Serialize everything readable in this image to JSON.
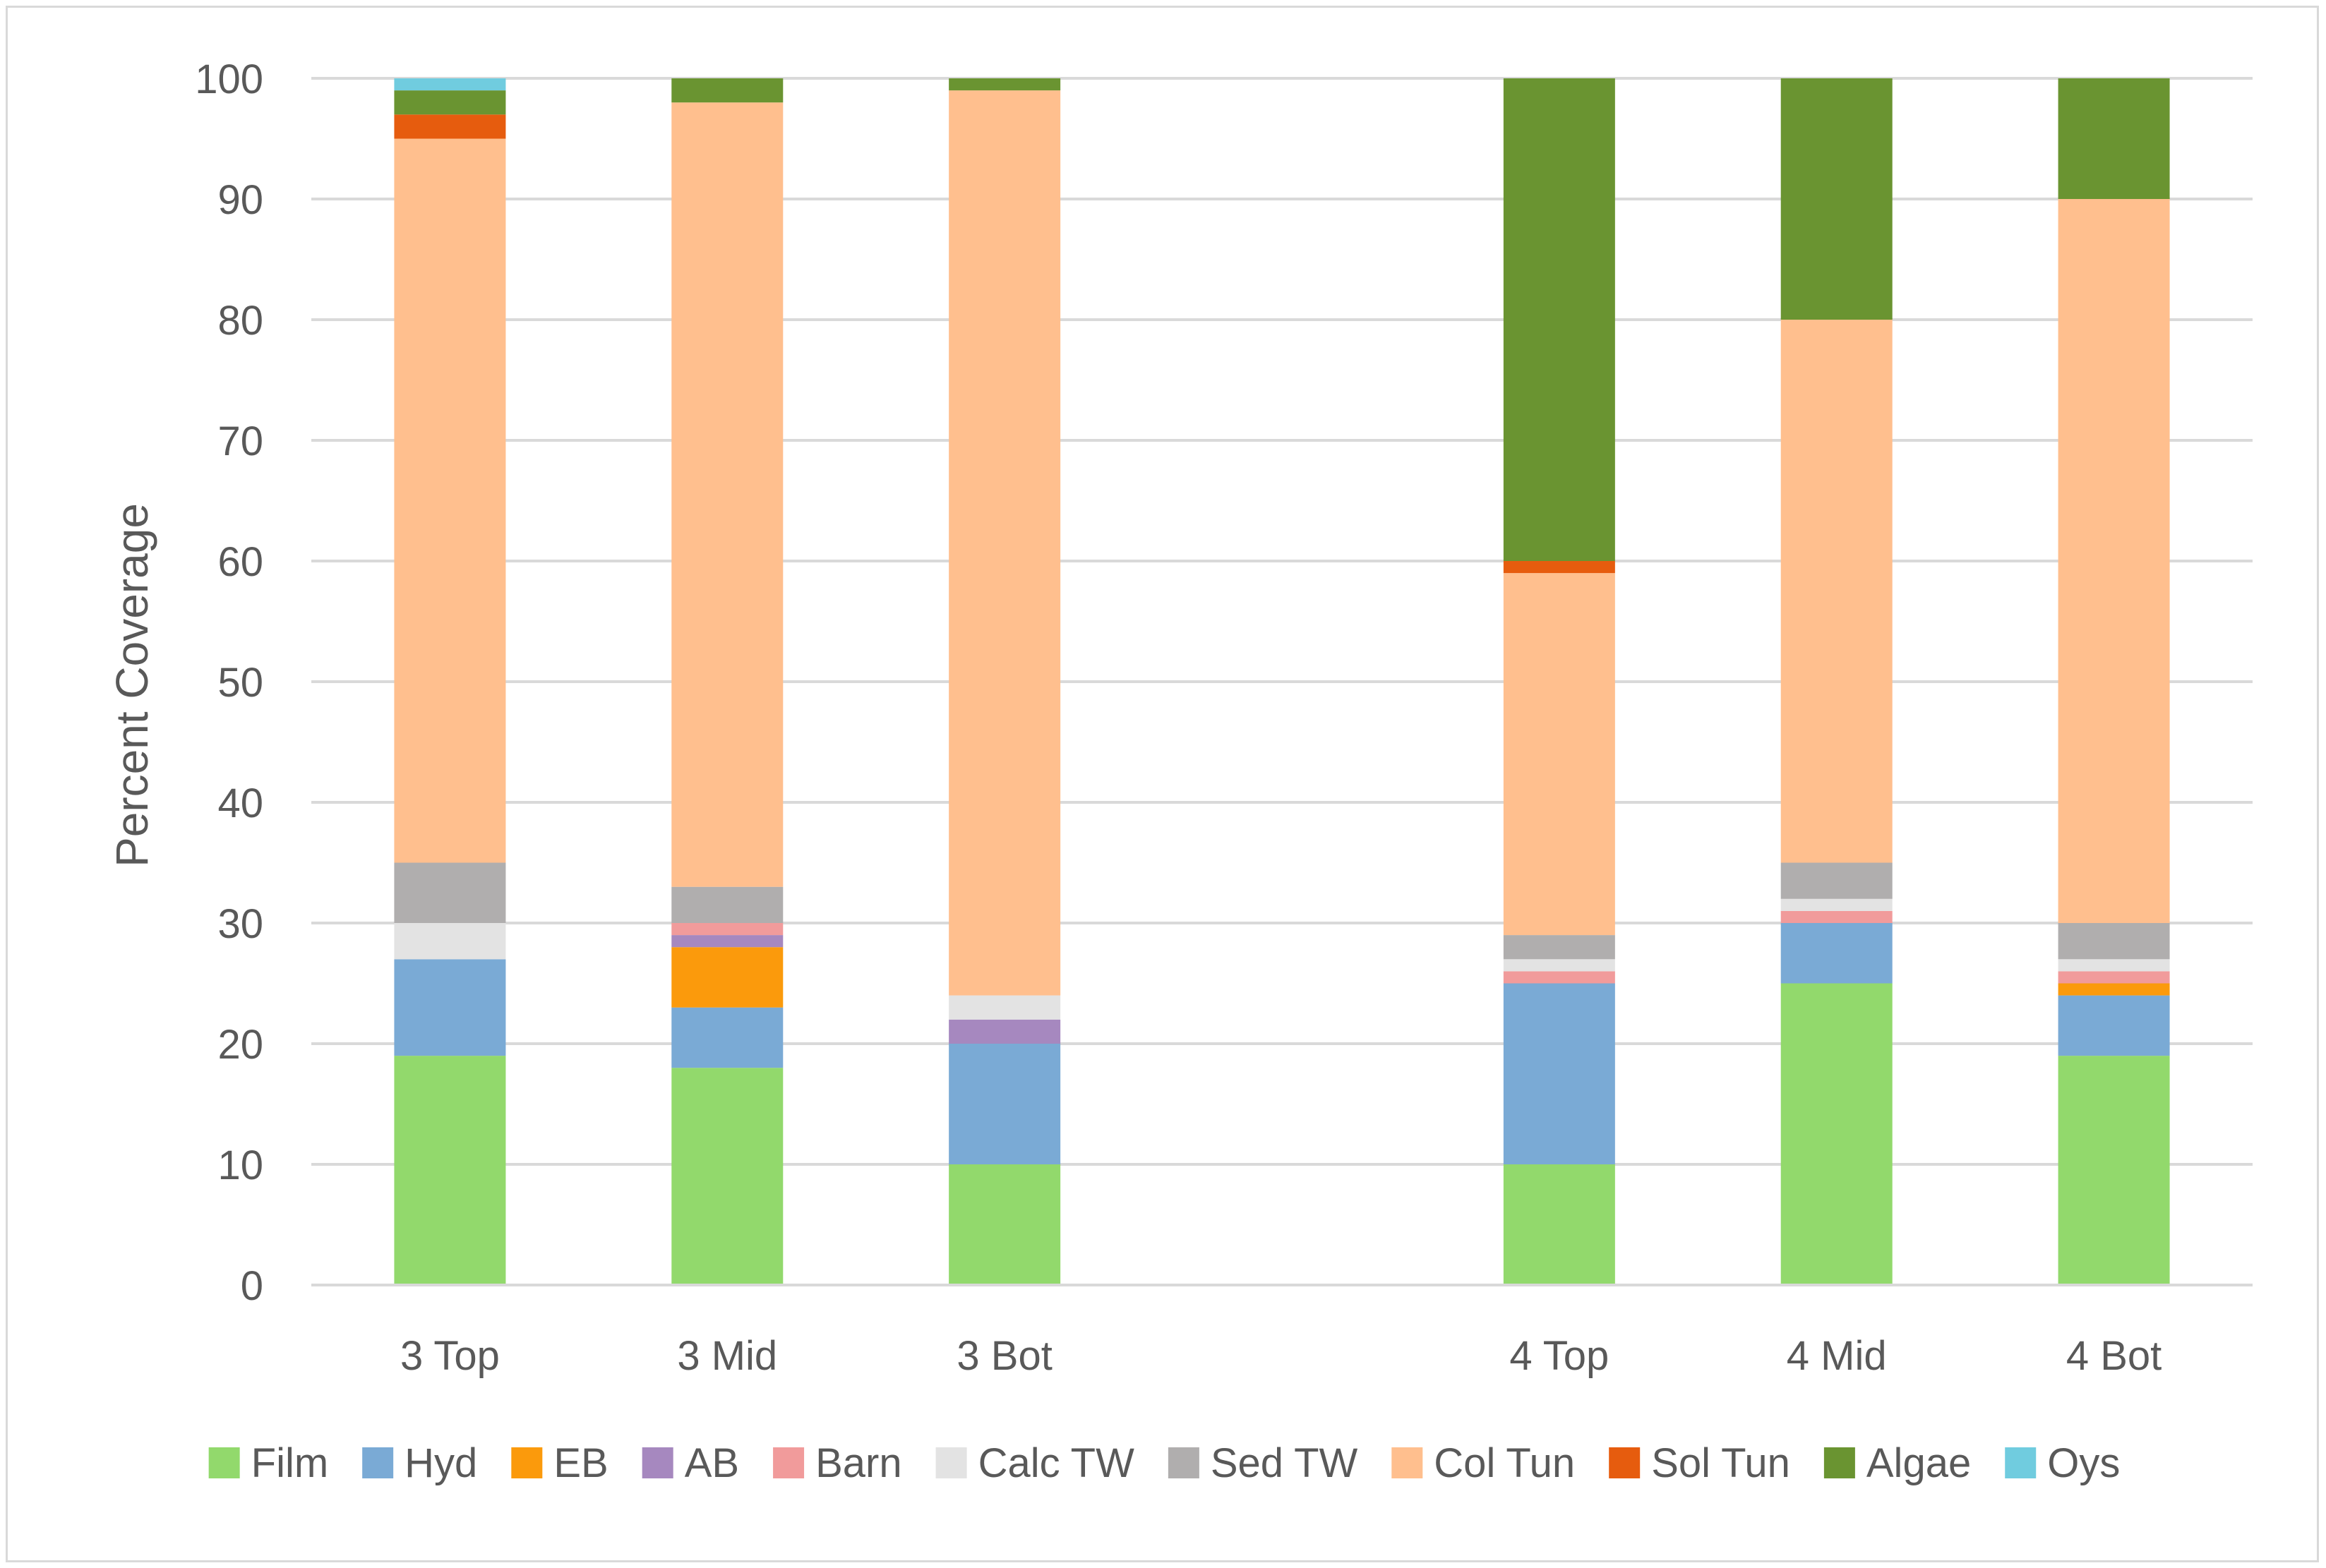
{
  "chart_data": {
    "type": "bar",
    "stacked": true,
    "title": "",
    "xlabel": "",
    "ylabel": "Percent Coverage",
    "ylim": [
      0,
      100
    ],
    "yticks": [
      0,
      10,
      20,
      30,
      40,
      50,
      60,
      70,
      80,
      90,
      100
    ],
    "grid": true,
    "legend_position": "bottom",
    "categories": [
      "3 Top",
      "3 Mid",
      "3 Bot",
      "",
      "4 Top",
      "4 Mid",
      "4 Bot"
    ],
    "series": [
      {
        "name": "Film",
        "color": "#92d96c",
        "values": [
          19,
          18,
          10,
          0,
          10,
          25,
          19
        ]
      },
      {
        "name": "Hyd",
        "color": "#7aaad5",
        "values": [
          8,
          5,
          10,
          0,
          15,
          5,
          5
        ]
      },
      {
        "name": "EB",
        "color": "#fb9a0c",
        "values": [
          0,
          5,
          0,
          0,
          0,
          0,
          1
        ]
      },
      {
        "name": "AB",
        "color": "#a688bf",
        "values": [
          0,
          1,
          2,
          0,
          0,
          0,
          0
        ]
      },
      {
        "name": "Barn",
        "color": "#f19b9b",
        "values": [
          0,
          1,
          0,
          0,
          1,
          1,
          1
        ]
      },
      {
        "name": "Calc TW",
        "color": "#e3e3e3",
        "values": [
          3,
          0,
          2,
          0,
          1,
          1,
          1
        ]
      },
      {
        "name": "Sed TW",
        "color": "#b0aeae",
        "values": [
          5,
          3,
          0,
          0,
          2,
          3,
          3
        ]
      },
      {
        "name": "Col Tun",
        "color": "#ffbf8e",
        "values": [
          60,
          65,
          75,
          0,
          30,
          45,
          60
        ]
      },
      {
        "name": "Sol Tun",
        "color": "#e65c0e",
        "values": [
          2,
          0,
          0,
          0,
          1,
          0,
          0
        ]
      },
      {
        "name": "Algae",
        "color": "#6a9431",
        "values": [
          2,
          2,
          1,
          0,
          40,
          20,
          10
        ]
      },
      {
        "name": "Oys",
        "color": "#70ccdf",
        "values": [
          1,
          0,
          0,
          0,
          0,
          0,
          0
        ]
      }
    ]
  },
  "colors": {
    "grid": "#d9d9d9",
    "axis": "#d9d9d9",
    "text": "#595959"
  }
}
